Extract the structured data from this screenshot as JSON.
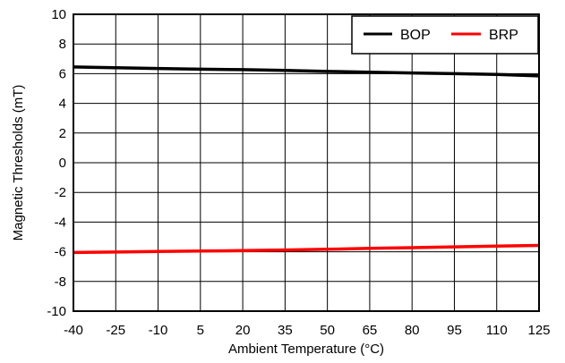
{
  "chart_data": {
    "type": "line",
    "xlabel": "Ambient Temperature (°C)",
    "ylabel": "Magnetic Thresholds (mT)",
    "xlim": [
      -40,
      125
    ],
    "ylim": [
      -10,
      10
    ],
    "x_ticks": [
      -40,
      -25,
      -10,
      5,
      20,
      35,
      50,
      65,
      80,
      95,
      110,
      125
    ],
    "y_ticks": [
      10,
      8,
      6,
      4,
      2,
      0,
      -2,
      -4,
      -6,
      -8,
      -10
    ],
    "grid": true,
    "legend_position": "top-right",
    "series": [
      {
        "name": "BOP",
        "color": "#000000",
        "x": [
          -40,
          -25,
          -10,
          5,
          20,
          35,
          50,
          65,
          80,
          95,
          110,
          125
        ],
        "y": [
          6.45,
          6.4,
          6.35,
          6.3,
          6.27,
          6.22,
          6.15,
          6.1,
          6.05,
          6.0,
          5.95,
          5.85
        ]
      },
      {
        "name": "BRP",
        "color": "#ff0000",
        "x": [
          -40,
          -25,
          -10,
          5,
          20,
          35,
          50,
          65,
          80,
          95,
          110,
          125
        ],
        "y": [
          -6.05,
          -6.02,
          -5.98,
          -5.95,
          -5.92,
          -5.88,
          -5.83,
          -5.77,
          -5.72,
          -5.67,
          -5.62,
          -5.57
        ]
      }
    ]
  }
}
